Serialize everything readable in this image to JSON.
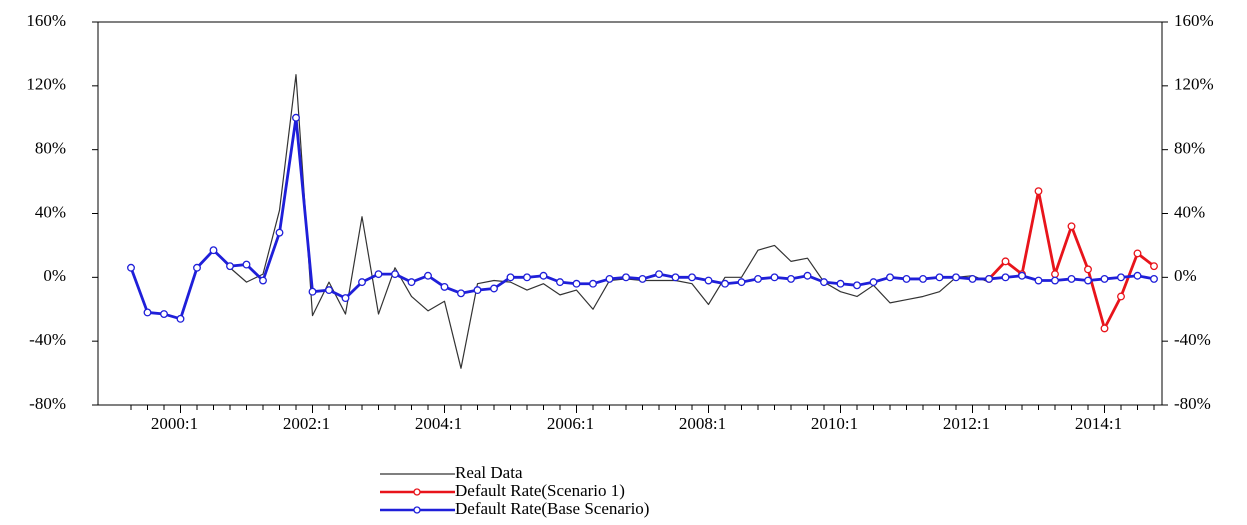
{
  "chart_data": {
    "type": "line",
    "categories": [
      null,
      null,
      null,
      "2000:1",
      null,
      null,
      null,
      null,
      null,
      null,
      null,
      "2002:1",
      null,
      null,
      null,
      null,
      null,
      null,
      null,
      "2004:1",
      null,
      null,
      null,
      null,
      null,
      null,
      null,
      "2006:1",
      null,
      null,
      null,
      null,
      null,
      null,
      null,
      "2008:1",
      null,
      null,
      null,
      null,
      null,
      null,
      null,
      "2010:1",
      null,
      null,
      null,
      null,
      null,
      null,
      null,
      "2012:1",
      null,
      null,
      null,
      null,
      null,
      null,
      null,
      "2014:1",
      null,
      null,
      null
    ],
    "series": [
      {
        "name": "Real Data",
        "color": "#333333",
        "markers": false,
        "values": [
          6,
          -22,
          -23,
          -26,
          6,
          17,
          6,
          -3,
          2,
          42,
          127,
          -24,
          -3,
          -23,
          38,
          -23,
          6,
          -12,
          -21,
          -15,
          -57,
          -4,
          -2,
          -3,
          -8,
          -4,
          -11,
          -8,
          -20,
          -2,
          -1,
          -2,
          -2,
          -2,
          -4,
          -17,
          0,
          0,
          17,
          20,
          10,
          12,
          -3,
          -9,
          -12,
          -5,
          -16,
          -14,
          -12,
          -9,
          0,
          1,
          -3,
          null,
          null,
          null,
          null,
          null,
          null,
          null,
          null,
          null,
          null
        ]
      },
      {
        "name": "Default Rate(Scenario 1)",
        "color": "#e8141b",
        "markers": true,
        "values": [
          null,
          null,
          null,
          null,
          null,
          null,
          null,
          null,
          null,
          null,
          null,
          null,
          null,
          null,
          null,
          null,
          null,
          null,
          null,
          null,
          null,
          null,
          null,
          null,
          null,
          null,
          null,
          null,
          null,
          null,
          null,
          null,
          null,
          null,
          null,
          null,
          null,
          null,
          null,
          null,
          null,
          null,
          null,
          null,
          null,
          null,
          null,
          null,
          null,
          null,
          null,
          null,
          -1,
          10,
          2,
          54,
          2,
          32,
          5,
          -32,
          -12,
          15,
          7
        ]
      },
      {
        "name": "Default Rate(Base Scenario)",
        "color": "#1f1fd9",
        "markers": true,
        "values": [
          6,
          -22,
          -23,
          -26,
          6,
          17,
          7,
          8,
          -2,
          28,
          100,
          -9,
          -8,
          -13,
          -3,
          2,
          2,
          -3,
          1,
          -6,
          -10,
          -8,
          -7,
          0,
          0,
          1,
          -3,
          -4,
          -4,
          -1,
          0,
          -1,
          2,
          0,
          0,
          -2,
          -4,
          -3,
          -1,
          0,
          -1,
          1,
          -3,
          -4,
          -5,
          -3,
          0,
          -1,
          -1,
          0,
          0,
          -1,
          -1,
          0,
          1,
          -2,
          -2,
          -1,
          -2,
          -1,
          0,
          1,
          -1
        ]
      }
    ],
    "ylim": [
      -80,
      160
    ],
    "yticks": [
      {
        "value": -80,
        "label": "-80%"
      },
      {
        "value": -40,
        "label": "-40%"
      },
      {
        "value": 0,
        "label": "0%"
      },
      {
        "value": 40,
        "label": "40%"
      },
      {
        "value": 80,
        "label": "80%"
      },
      {
        "value": 120,
        "label": "120%"
      },
      {
        "value": 160,
        "label": "160%"
      }
    ],
    "grid": false
  }
}
